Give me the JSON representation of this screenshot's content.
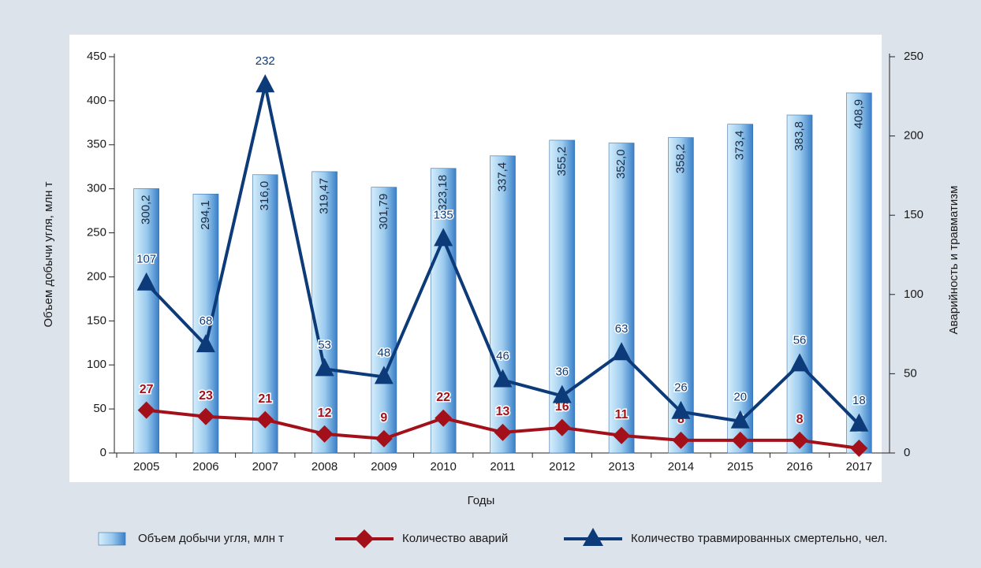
{
  "chart_data": {
    "type": "bar_line",
    "categories": [
      "2005",
      "2006",
      "2007",
      "2008",
      "2009",
      "2010",
      "2011",
      "2012",
      "2013",
      "2014",
      "2015",
      "2016",
      "2017"
    ],
    "x_label": "Годы",
    "y_label": "Объем добычи угля, млн т",
    "y2_label": "Аварийность и травматизм",
    "ylim": [
      0,
      450
    ],
    "yticks": [
      0,
      50,
      100,
      150,
      200,
      250,
      300,
      350,
      400,
      450
    ],
    "y2lim": [
      0,
      250
    ],
    "y2ticks": [
      0,
      50,
      100,
      150,
      200,
      250
    ],
    "series": [
      {
        "name": "Объем добычи угля, млн т",
        "type": "bar",
        "axis": "y",
        "color": "#4a8fd4",
        "values": [
          300.2,
          294.1,
          316.0,
          319.47,
          301.79,
          323.18,
          337.4,
          355.2,
          352.0,
          358.2,
          373.4,
          383.8,
          408.9
        ],
        "value_labels": [
          "300,2",
          "294,1",
          "316,0",
          "319,47",
          "301,79",
          "323,18",
          "337,4",
          "355,2",
          "352,0",
          "358,2",
          "373,4",
          "383,8",
          "408,9"
        ]
      },
      {
        "name": "Количество аварий",
        "type": "line",
        "marker": "diamond",
        "axis": "y2",
        "color": "#a3101a",
        "values": [
          27,
          23,
          21,
          12,
          9,
          22,
          13,
          16,
          11,
          8,
          8,
          8,
          3
        ]
      },
      {
        "name": "Количество травмированных смертельно, чел.",
        "type": "line",
        "marker": "triangle",
        "axis": "y2",
        "color": "#0d3b7a",
        "values": [
          107,
          68,
          232,
          53,
          48,
          135,
          46,
          36,
          63,
          26,
          20,
          56,
          18
        ]
      }
    ]
  }
}
